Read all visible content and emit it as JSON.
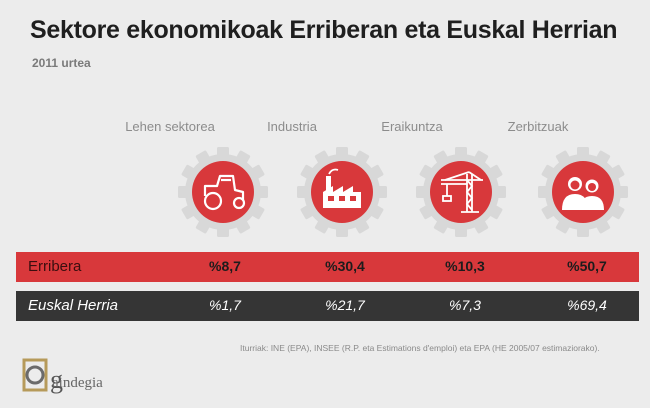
{
  "title": "Sektore ekonomikoak Erriberan eta Euskal Herrian",
  "subtitle": "2011 urtea",
  "source": "Iturriak: INE (EPA), INSEE (R.P. eta Estimations d'emploi) eta EPA (HE 2005/07 estimaziorako).",
  "logo_text": "aindegia",
  "colors": {
    "accent": "#d8383b",
    "dark": "#353535",
    "background": "#ececec"
  },
  "sectors": [
    {
      "label": "Lehen sektorea",
      "icon": "tractor-icon"
    },
    {
      "label": "Industria",
      "icon": "factory-icon"
    },
    {
      "label": "Eraikuntza",
      "icon": "crane-icon"
    },
    {
      "label": "Zerbitzuak",
      "icon": "people-icon"
    }
  ],
  "chart_data": {
    "type": "table",
    "title": "Sektore ekonomikoak Erriberan eta Euskal Herrian",
    "subtitle": "2011 urtea",
    "categories": [
      "Lehen sektorea",
      "Industria",
      "Eraikuntza",
      "Zerbitzuak"
    ],
    "series": [
      {
        "name": "Erribera",
        "values": [
          8.7,
          30.4,
          10.3,
          50.7
        ],
        "labels": [
          "%8,7",
          "%30,4",
          "%10,3",
          "%50,7"
        ]
      },
      {
        "name": "Euskal Herria",
        "values": [
          1.7,
          21.7,
          7.3,
          69.4
        ],
        "labels": [
          "%1,7",
          "%21,7",
          "%7,3",
          "%69,4"
        ]
      }
    ]
  }
}
